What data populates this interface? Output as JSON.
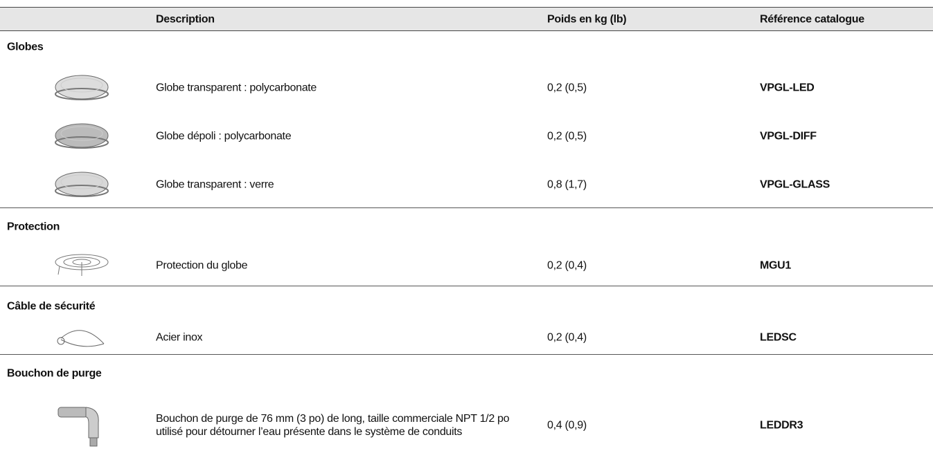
{
  "header": {
    "columns": [
      "Description",
      "Poids en kg (lb)",
      "Référence catalogue"
    ]
  },
  "sections": [
    {
      "title": "Globes",
      "items": [
        {
          "description": "Globe transparent : polycarbonate",
          "weight": "0,2 (0,5)",
          "reference": "VPGL-LED"
        },
        {
          "description": "Globe dépoli : polycarbonate",
          "weight": "0,2 (0,5)",
          "reference": "VPGL-DIFF"
        },
        {
          "description": "Globe transparent : verre",
          "weight": "0,8 (1,7)",
          "reference": "VPGL-GLASS"
        }
      ]
    },
    {
      "title": "Protection",
      "items": [
        {
          "description": "Protection du globe",
          "weight": "0,2 (0,4)",
          "reference": "MGU1"
        }
      ]
    },
    {
      "title": "Câble de sécurité",
      "items": [
        {
          "description": "Acier inox",
          "weight": "0,2 (0,4)",
          "reference": "LEDSC"
        }
      ]
    },
    {
      "title": "Bouchon de purge",
      "items": [
        {
          "description": "Bouchon de purge de 76 mm (3 po) de long, taille commerciale NPT 1/2 po utilisé pour détourner l’eau présente dans le système de conduits",
          "weight": "0,4 (0,9)",
          "reference": "LEDDR3"
        }
      ]
    }
  ]
}
